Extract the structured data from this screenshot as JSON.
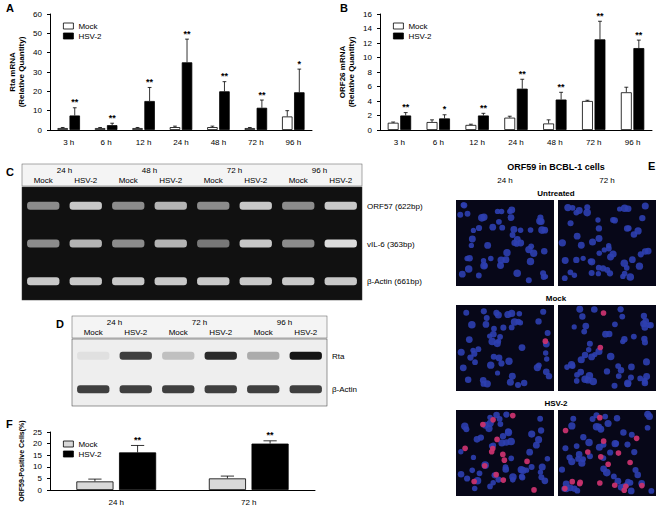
{
  "chart_data": [
    {
      "panel": "A",
      "type": "bar",
      "categories": [
        "3 h",
        "6 h",
        "12 h",
        "24 h",
        "48 h",
        "72 h",
        "96 h"
      ],
      "y_label": "Rta mRNA (Relative Quantity)",
      "ylim": [
        0,
        60
      ],
      "yticks": [
        0,
        10,
        20,
        30,
        40,
        50,
        60
      ],
      "grid": false,
      "legend": "upper left",
      "series": [
        {
          "name": "Mock",
          "color": "#ffffff",
          "values": [
            1,
            1,
            1,
            1.5,
            1.5,
            1,
            7
          ],
          "errors": [
            0.3,
            0.3,
            0.3,
            0.5,
            0.5,
            0.3,
            3
          ]
        },
        {
          "name": "HSV-2",
          "color": "#000000",
          "values": [
            7.5,
            2.5,
            15,
            35,
            20,
            11.5,
            19.5
          ],
          "errors": [
            4,
            1,
            7,
            12,
            5,
            4,
            12
          ]
        }
      ],
      "annotations": [
        "**",
        "**",
        "**",
        "**",
        "**",
        "**",
        "*"
      ]
    },
    {
      "panel": "B",
      "type": "bar",
      "categories": [
        "3 h",
        "6 h",
        "12 h",
        "24 h",
        "48 h",
        "72 h",
        "96 h"
      ],
      "y_label": "ORF26 mRNA (Relative Quantity)",
      "ylim": [
        0,
        16
      ],
      "yticks": [
        0,
        2,
        4,
        6,
        8,
        10,
        12,
        14,
        16
      ],
      "grid": false,
      "legend": "upper left",
      "series": [
        {
          "name": "Mock",
          "color": "#ffffff",
          "values": [
            1,
            1.1,
            0.7,
            1.7,
            0.9,
            4,
            5.2
          ],
          "errors": [
            0.1,
            0.3,
            0.1,
            0.2,
            0.5,
            0.1,
            0.7
          ]
        },
        {
          "name": "HSV-2",
          "color": "#000000",
          "values": [
            2,
            1.6,
            2,
            5.7,
            4.2,
            12.5,
            11.3
          ],
          "errors": [
            0.4,
            0.5,
            0.3,
            1.3,
            1,
            2.5,
            1.1
          ]
        }
      ],
      "annotations": [
        "**",
        "*",
        "**",
        "**",
        "**",
        "**",
        "**"
      ]
    },
    {
      "panel": "F",
      "type": "bar",
      "categories": [
        "24 h",
        "72 h"
      ],
      "y_label": "ORF59-Positive Cells(%)",
      "ylim": [
        0,
        25
      ],
      "yticks": [
        0,
        5,
        10,
        15,
        20,
        25
      ],
      "grid": false,
      "legend": "upper left",
      "series": [
        {
          "name": "Mock",
          "color": "#d9d9d9",
          "values": [
            3.7,
            5
          ],
          "errors": [
            1,
            1
          ]
        },
        {
          "name": "HSV-2",
          "color": "#000000",
          "values": [
            16.2,
            20
          ],
          "errors": [
            3,
            1.2
          ]
        }
      ],
      "annotations": [
        "**",
        "**"
      ]
    }
  ],
  "gels": [
    {
      "panel": "C",
      "times": [
        "24 h",
        "48 h",
        "72 h",
        "96 h"
      ],
      "lanes": [
        "Mock",
        "HSV-2"
      ],
      "rows": [
        {
          "label": "ORF57 (622bp)",
          "intensity": [
            0.5,
            0.8,
            0.5,
            0.7,
            0.5,
            0.8,
            0.5,
            0.8
          ]
        },
        {
          "label": "vIL-6 (363bp)",
          "intensity": [
            0.5,
            0.7,
            0.5,
            0.7,
            0.4,
            0.8,
            0.5,
            0.9
          ]
        },
        {
          "label": "β-Actin (661bp)",
          "intensity": [
            0.8,
            0.8,
            0.8,
            0.8,
            0.8,
            0.8,
            0.8,
            0.8
          ]
        }
      ]
    },
    {
      "panel": "D",
      "times": [
        "24 h",
        "72 h",
        "96 h"
      ],
      "lanes": [
        "Mock",
        "HSV-2"
      ],
      "rows": [
        {
          "label": "Rta",
          "intensity": [
            0.05,
            0.8,
            0.2,
            0.9,
            0.3,
            1
          ]
        },
        {
          "label": "β-Actin",
          "intensity": [
            0.8,
            0.8,
            0.8,
            0.8,
            0.8,
            0.8
          ]
        }
      ]
    }
  ],
  "micrograph": {
    "panel": "E",
    "title": "ORF59 in BCBL-1 cells",
    "columns": [
      "24 h",
      "72 h"
    ],
    "rows": [
      {
        "label": "Untreated",
        "stained_cells": [
          0,
          0
        ]
      },
      {
        "label": "Mock",
        "stained_cells": [
          1,
          2
        ]
      },
      {
        "label": "HSV-2",
        "stained_cells": [
          15,
          18
        ]
      }
    ]
  }
}
